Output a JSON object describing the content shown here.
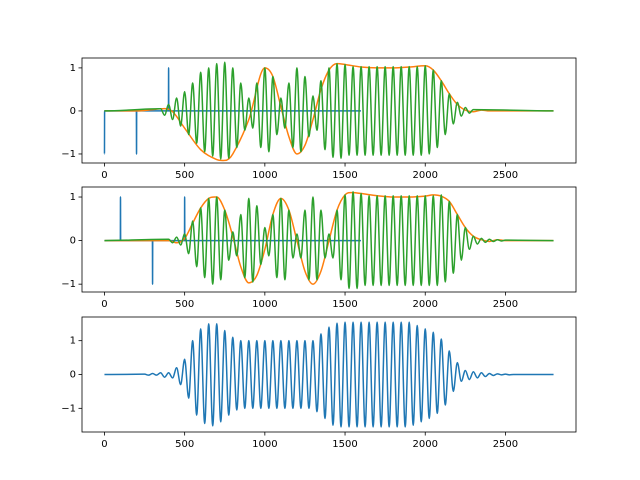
{
  "chart_data": [
    {
      "type": "line",
      "xlim": [
        -140,
        2940
      ],
      "ylim": [
        -1.21,
        1.23
      ],
      "xticks": [
        0,
        500,
        1000,
        1500,
        2000,
        2500
      ],
      "yticks": [
        {
          "value": -1,
          "label": "−1"
        },
        0,
        1
      ],
      "series": [
        {
          "color": "#1f77b4",
          "x": [
            0,
            1,
            199,
            200,
            201,
            399,
            400,
            401,
            1599
          ],
          "values": [
            -1,
            0,
            0,
            -1,
            0,
            0,
            1,
            0,
            0
          ]
        },
        {
          "color": "#ff7f0e",
          "x": [
            0,
            200,
            300,
            350,
            420,
            500,
            600,
            700,
            750,
            800,
            900,
            1000,
            1050,
            1100,
            1150,
            1200,
            1250,
            1300,
            1350,
            1400,
            1450,
            1500,
            1600,
            1700,
            1800,
            1900,
            2000,
            2050,
            2100,
            2150,
            2200,
            2250,
            2300,
            2350,
            2400,
            2500,
            2800
          ],
          "values": [
            0,
            0,
            0.03,
            0.05,
            0,
            -0.4,
            -0.9,
            -1.13,
            -1.15,
            -1.0,
            -0.2,
            1.0,
            0.8,
            0.1,
            -0.6,
            -1.0,
            -0.8,
            -0.2,
            0.5,
            0.95,
            1.1,
            1.08,
            1.02,
            1.0,
            1.0,
            1.02,
            1.05,
            0.95,
            0.7,
            0.4,
            0.15,
            0.02,
            -0.02,
            0.02,
            0,
            0,
            0
          ]
        },
        {
          "color": "#2ca02c",
          "x": [
            0,
            350,
            375,
            400,
            425,
            450,
            475,
            500,
            525,
            550,
            575,
            600,
            625,
            650,
            675,
            700,
            725,
            750,
            775,
            800,
            825,
            850,
            875,
            900,
            925,
            950,
            975,
            1000,
            1025,
            1050,
            1075,
            1100,
            1125,
            1150,
            1175,
            1200,
            1225,
            1250,
            1275,
            1300,
            1325,
            1350,
            1375,
            1400,
            1425,
            1450,
            1475,
            1500,
            1525,
            1550,
            1575,
            1600,
            1625,
            1650,
            1675,
            1700,
            1725,
            1750,
            1775,
            1800,
            1825,
            1850,
            1875,
            1900,
            1925,
            1950,
            1975,
            2000,
            2025,
            2050,
            2075,
            2100,
            2125,
            2150,
            2175,
            2200,
            2225,
            2250,
            2275,
            2300,
            2800
          ],
          "values": [
            0,
            0.05,
            -0.1,
            0.15,
            -0.2,
            0.3,
            -0.35,
            0.45,
            -0.55,
            0.65,
            -0.75,
            0.9,
            -0.95,
            1,
            -1.05,
            1.1,
            -1.12,
            1.13,
            -1.1,
            1,
            -0.85,
            0.65,
            -0.45,
            0.3,
            -0.4,
            0.65,
            -0.85,
            1,
            -0.95,
            0.8,
            -0.55,
            0.3,
            -0.4,
            0.65,
            -0.85,
            1,
            -0.95,
            0.8,
            -0.6,
            0.35,
            -0.45,
            0.7,
            -0.9,
            1,
            -1.08,
            1.1,
            -1.1,
            1.08,
            -1.03,
            1.03,
            -1.03,
            1.03,
            -1.03,
            1.03,
            -1.03,
            1.03,
            -1.03,
            1.03,
            -1.03,
            1.03,
            -1.03,
            1.03,
            -1.03,
            1.03,
            -1.03,
            1.03,
            -1.03,
            1.05,
            -1,
            0.95,
            -0.85,
            0.7,
            -0.55,
            0.4,
            -0.3,
            0.2,
            -0.12,
            0.08,
            -0.05,
            0.03,
            0
          ]
        }
      ]
    },
    {
      "type": "line",
      "xlim": [
        -140,
        2940
      ],
      "ylim": [
        -1.18,
        1.23
      ],
      "xticks": [
        0,
        500,
        1000,
        1500,
        2000,
        2500
      ],
      "yticks": [
        {
          "value": -1,
          "label": "−1"
        },
        0,
        1
      ],
      "series": [
        {
          "color": "#1f77b4",
          "x": [
            0,
            99,
            100,
            101,
            299,
            300,
            301,
            499,
            500,
            501,
            1599
          ],
          "values": [
            0,
            0,
            1,
            0,
            0,
            -1,
            0,
            0,
            1,
            0,
            0
          ]
        },
        {
          "color": "#ff7f0e",
          "x": [
            0,
            400,
            450,
            500,
            550,
            600,
            650,
            700,
            750,
            800,
            850,
            900,
            950,
            1000,
            1050,
            1100,
            1150,
            1200,
            1250,
            1300,
            1350,
            1400,
            1450,
            1500,
            1550,
            1600,
            1700,
            1800,
            1900,
            2000,
            2050,
            2100,
            2150,
            2200,
            2250,
            2300,
            2350,
            2400,
            2450,
            2500,
            2800
          ],
          "values": [
            0,
            0,
            -0.05,
            0.05,
            0.4,
            0.75,
            0.97,
            1.0,
            0.7,
            0.1,
            -0.6,
            -0.97,
            -0.8,
            -0.2,
            0.6,
            0.97,
            0.7,
            0.0,
            -0.7,
            -1.0,
            -0.7,
            0.0,
            0.7,
            1.05,
            1.1,
            1.08,
            1.03,
            1.0,
            1.0,
            1.02,
            1.05,
            1.02,
            0.9,
            0.6,
            0.3,
            0.1,
            0.02,
            -0.02,
            0.02,
            0,
            0
          ]
        },
        {
          "color": "#2ca02c",
          "x": [
            0,
            400,
            425,
            450,
            475,
            500,
            525,
            550,
            575,
            600,
            625,
            650,
            675,
            700,
            725,
            750,
            775,
            800,
            825,
            850,
            875,
            900,
            925,
            950,
            975,
            1000,
            1025,
            1050,
            1075,
            1100,
            1125,
            1150,
            1175,
            1200,
            1225,
            1250,
            1275,
            1300,
            1325,
            1350,
            1375,
            1400,
            1425,
            1450,
            1475,
            1500,
            1525,
            1550,
            1575,
            1600,
            1625,
            1650,
            1675,
            1700,
            1725,
            1750,
            1775,
            1800,
            1825,
            1850,
            1875,
            1900,
            1925,
            1950,
            1975,
            2000,
            2025,
            2050,
            2075,
            2100,
            2125,
            2150,
            2175,
            2200,
            2225,
            2250,
            2275,
            2300,
            2325,
            2350,
            2375,
            2400,
            2425,
            2450,
            2475,
            2500,
            2800
          ],
          "values": [
            0,
            0.03,
            -0.05,
            0.08,
            -0.1,
            0.15,
            -0.3,
            0.45,
            -0.6,
            0.75,
            -0.85,
            0.97,
            -1,
            1,
            -0.9,
            0.7,
            -0.45,
            0.2,
            -0.35,
            0.6,
            -0.85,
            0.97,
            -0.95,
            0.8,
            -0.55,
            0.3,
            -0.35,
            0.6,
            -0.85,
            0.97,
            -0.9,
            0.7,
            -0.4,
            0.15,
            -0.4,
            0.7,
            -0.9,
            1,
            -0.9,
            0.7,
            -0.4,
            0.15,
            -0.4,
            0.7,
            -0.9,
            1.05,
            -1.1,
            1.12,
            -1.1,
            1.08,
            -1.03,
            1.03,
            -1.03,
            1.03,
            -1.03,
            1.03,
            -1.03,
            1.03,
            -1.03,
            1.03,
            -1.03,
            1.03,
            -1.03,
            1.03,
            -1.03,
            1.03,
            -1.03,
            1.03,
            -1.03,
            1.05,
            -0.95,
            0.9,
            -0.75,
            0.6,
            -0.45,
            0.3,
            -0.2,
            0.1,
            -0.08,
            0.05,
            -0.04,
            0.03,
            -0.02,
            0.02,
            -0.01,
            0.01,
            0
          ]
        }
      ]
    },
    {
      "type": "line",
      "xlim": [
        -140,
        2940
      ],
      "ylim": [
        -1.7,
        1.7
      ],
      "xticks": [
        0,
        500,
        1000,
        1500,
        2000,
        2500
      ],
      "yticks": [
        {
          "value": -1,
          "label": "−1"
        },
        0,
        1
      ],
      "series": [
        {
          "color": "#1f77b4",
          "x": [
            0,
            250,
            275,
            300,
            325,
            350,
            375,
            400,
            425,
            450,
            475,
            500,
            525,
            550,
            575,
            600,
            625,
            650,
            675,
            700,
            725,
            750,
            775,
            800,
            825,
            850,
            875,
            900,
            925,
            950,
            975,
            1000,
            1025,
            1050,
            1075,
            1100,
            1125,
            1150,
            1175,
            1200,
            1225,
            1250,
            1275,
            1300,
            1325,
            1350,
            1375,
            1400,
            1425,
            1450,
            1475,
            1500,
            1525,
            1550,
            1575,
            1600,
            1625,
            1650,
            1675,
            1700,
            1725,
            1750,
            1775,
            1800,
            1825,
            1850,
            1875,
            1900,
            1925,
            1950,
            1975,
            2000,
            2025,
            2050,
            2075,
            2100,
            2125,
            2150,
            2175,
            2200,
            2225,
            2250,
            2275,
            2300,
            2325,
            2350,
            2375,
            2400,
            2425,
            2450,
            2475,
            2500,
            2525,
            2550,
            2800
          ],
          "values": [
            0,
            0.01,
            -0.02,
            0.03,
            -0.02,
            0.05,
            -0.08,
            0.05,
            -0.1,
            0.2,
            -0.3,
            0.45,
            -0.7,
            1,
            -1.2,
            1.35,
            -1.45,
            1.5,
            -1.52,
            1.5,
            -1.4,
            1.3,
            -1.2,
            1.1,
            -1.05,
            1,
            -1,
            1,
            -1,
            1,
            -1,
            1,
            -1,
            1,
            -1,
            1,
            -1,
            1,
            -1,
            1,
            -1,
            1,
            -1,
            1,
            -1.1,
            1.2,
            -1.3,
            1.4,
            -1.5,
            1.52,
            -1.55,
            1.55,
            -1.55,
            1.55,
            -1.55,
            1.55,
            -1.55,
            1.55,
            -1.55,
            1.55,
            -1.55,
            1.55,
            -1.55,
            1.55,
            -1.55,
            1.55,
            -1.55,
            1.55,
            -1.5,
            1.45,
            -1.4,
            1.35,
            -1.3,
            1.25,
            -1.15,
            1.05,
            -0.9,
            0.7,
            -0.5,
            0.35,
            -0.2,
            0.12,
            -0.15,
            0.08,
            -0.1,
            0.05,
            -0.06,
            0.03,
            -0.03,
            0.02,
            -0.01,
            0.01,
            -0.01,
            0,
            0
          ]
        }
      ]
    }
  ]
}
